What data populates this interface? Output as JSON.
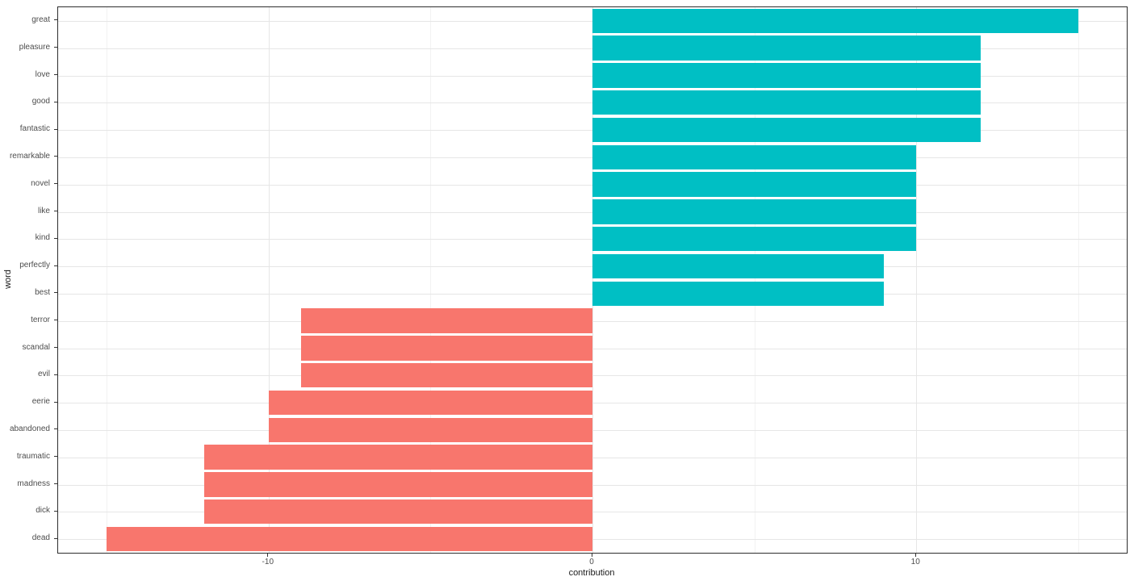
{
  "chart_data": {
    "type": "bar",
    "orientation": "horizontal",
    "title": "",
    "xlabel": "contribution",
    "ylabel": "word",
    "categories": [
      "great",
      "pleasure",
      "love",
      "good",
      "fantastic",
      "remarkable",
      "novel",
      "like",
      "kind",
      "perfectly",
      "best",
      "terror",
      "scandal",
      "evil",
      "eerie",
      "abandoned",
      "traumatic",
      "madness",
      "dick",
      "dead"
    ],
    "values": [
      15,
      12,
      12,
      12,
      12,
      10,
      10,
      10,
      10,
      9,
      9,
      -9,
      -9,
      -9,
      -10,
      -10,
      -12,
      -12,
      -12,
      -15
    ],
    "series_colors": {
      "positive": "#00BFC4",
      "negative": "#F8766D"
    },
    "xlim": [
      -16.5,
      16.5
    ],
    "x_ticks": [
      {
        "value": -10,
        "label": "-10"
      },
      {
        "value": 0,
        "label": "0"
      },
      {
        "value": 10,
        "label": "10"
      }
    ],
    "x_minor_gridlines": [
      -15,
      -5,
      5,
      15
    ],
    "grid": "vertical major+minor, horizontal major per category",
    "legend": "none",
    "bar_width_fraction": 0.9,
    "theme": {
      "panel_background": "#ffffff",
      "panel_border": "#2e2e2e",
      "grid_major": "#e6e6e6",
      "grid_minor": "#f2f2f2",
      "tick_color": "#333333",
      "tick_label_color": "#4d4d4d",
      "axis_title_color": "#1a1a1a"
    }
  }
}
